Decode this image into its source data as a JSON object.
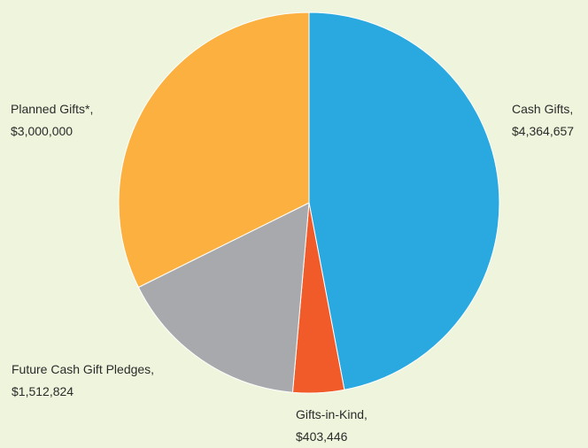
{
  "chart_data": {
    "type": "pie",
    "slices": [
      {
        "name": "Cash Gifts,",
        "value_label": "$4,364,657",
        "value": 4364657,
        "color": "#29a9e0"
      },
      {
        "name": "Gifts-in-Kind,",
        "value_label": "$403,446",
        "value": 403446,
        "color": "#f15a29"
      },
      {
        "name": "Future Cash Gift Pledges,",
        "value_label": "$1,512,824",
        "value": 1512824,
        "color": "#a7a9ac"
      },
      {
        "name": "Planned Gifts*,",
        "value_label": "$3,000,000",
        "value": 3000000,
        "color": "#fbb040"
      }
    ],
    "start": "12 o'clock",
    "direction": "clockwise",
    "legend": "none",
    "labels": "outside"
  },
  "background_color": "#eff5dc"
}
